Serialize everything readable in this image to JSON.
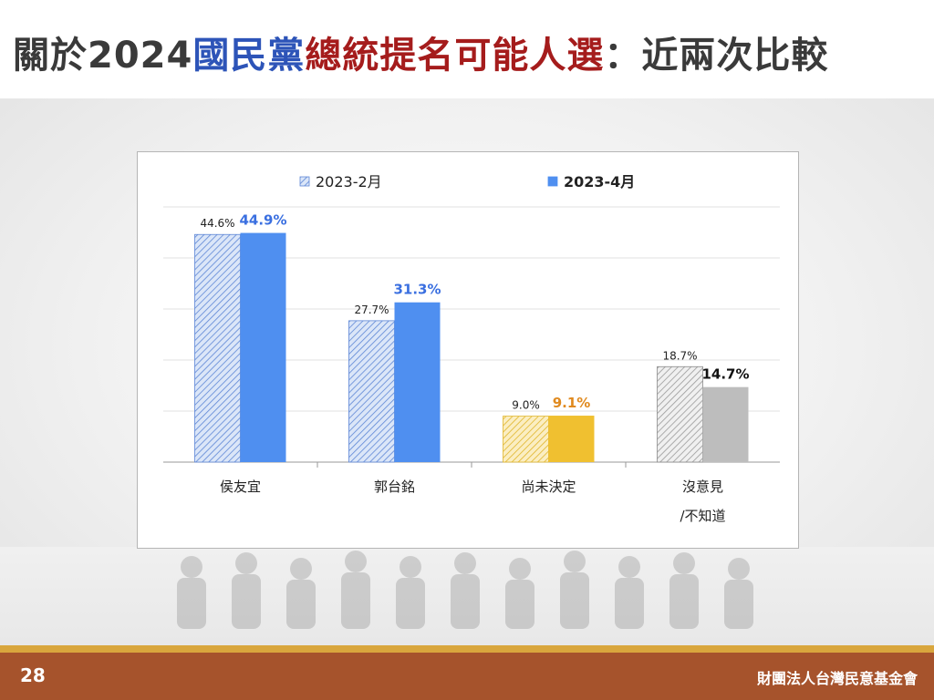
{
  "title": {
    "part1": "關於2024",
    "part2": "國民黨",
    "part3": "總統提名可能人選",
    "part4": "：近兩次比較"
  },
  "footer": {
    "page_number": "28",
    "organization": "財團法人台灣民意基金會"
  },
  "colors": {
    "title_blue": "#2d54b8",
    "title_red": "#a51c1c",
    "series_feb": "#9fbbe8",
    "series_apr": "#4f8ff0",
    "undecided": "#f0c030",
    "no_opinion": "#bdbdbd",
    "label_blue": "#3a6fe0",
    "label_orange": "#e08a1f",
    "footer_bar": "#a6532c"
  },
  "chart_data": {
    "type": "bar",
    "categories": [
      [
        "侯友宜"
      ],
      [
        "郭台銘"
      ],
      [
        "尚未決定"
      ],
      [
        "沒意見",
        "/不知道"
      ]
    ],
    "series": [
      {
        "name": "2023-2月",
        "values": [
          44.6,
          27.7,
          9.0,
          18.7
        ],
        "labels": [
          "44.6%",
          "27.7%",
          "9.0%",
          "18.7%"
        ]
      },
      {
        "name": "2023-4月",
        "values": [
          44.9,
          31.3,
          9.1,
          14.7
        ],
        "labels": [
          "44.9%",
          "31.3%",
          "9.1%",
          "14.7%"
        ]
      }
    ],
    "ylim": [
      0,
      50
    ],
    "grid": true,
    "legend_position": "top"
  }
}
